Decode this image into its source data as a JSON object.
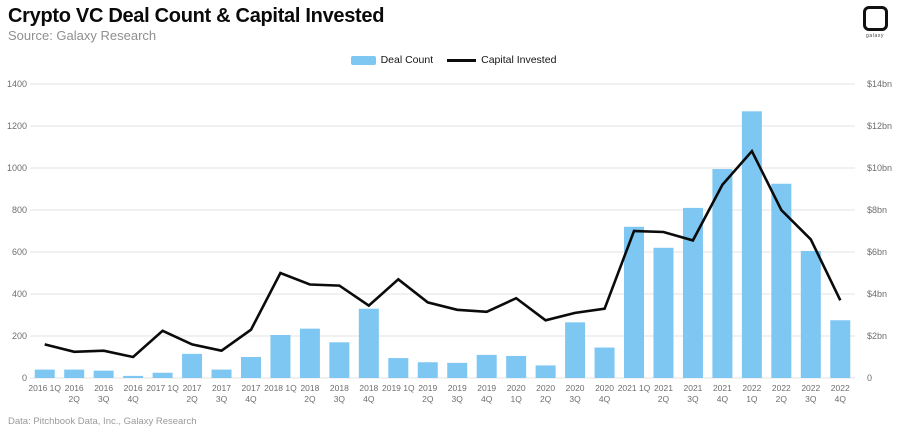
{
  "header": {
    "title": "Crypto VC Deal Count & Capital Invested",
    "subtitle": "Source: Galaxy Research",
    "logo_text": "galaxy"
  },
  "legend": {
    "deal_count_label": "Deal Count",
    "capital_invested_label": "Capital Invested"
  },
  "footer": {
    "text": "Data: Pitchbook Data, Inc., Galaxy Research"
  },
  "colors": {
    "bar": "#7ec7f3",
    "line": "#0b0b0b",
    "grid": "#e3e3e3",
    "axis_text": "#6e6e6e",
    "title_text": "#0a0a0a",
    "muted_text": "#9a9a9a"
  },
  "chart_data": {
    "type": "bar+line",
    "title": "Crypto VC Deal Count & Capital Invested",
    "categories": [
      "2016 1Q",
      "2016 2Q",
      "2016 3Q",
      "2016 4Q",
      "2017 1Q",
      "2017 2Q",
      "2017 3Q",
      "2017 4Q",
      "2018 1Q",
      "2018 2Q",
      "2018 3Q",
      "2018 4Q",
      "2019 1Q",
      "2019 2Q",
      "2019 3Q",
      "2019 4Q",
      "2020 1Q",
      "2020 2Q",
      "2020 3Q",
      "2020 4Q",
      "2021 1Q",
      "2021 2Q",
      "2021 3Q",
      "2021 4Q",
      "2022 1Q",
      "2022 2Q",
      "2022 3Q",
      "2022 4Q"
    ],
    "single_line_labels": [
      "2016 1Q",
      "2017 1Q",
      "2018 1Q",
      "2019 1Q",
      "2021 1Q"
    ],
    "series": [
      {
        "name": "Deal Count",
        "type": "bar",
        "axis": "left",
        "values": [
          40,
          40,
          35,
          10,
          25,
          115,
          40,
          100,
          205,
          235,
          170,
          330,
          95,
          75,
          72,
          110,
          105,
          60,
          265,
          145,
          720,
          620,
          810,
          995,
          1270,
          925,
          605,
          275
        ]
      },
      {
        "name": "Capital Invested",
        "type": "line",
        "axis": "right",
        "unit": "$bn",
        "values": [
          1.6,
          1.25,
          1.3,
          1.0,
          2.25,
          1.6,
          1.3,
          2.3,
          5.0,
          4.45,
          4.4,
          3.45,
          4.7,
          3.6,
          3.25,
          3.15,
          3.8,
          2.75,
          3.1,
          3.3,
          7.0,
          6.95,
          6.55,
          9.2,
          10.8,
          8.0,
          6.6,
          3.7
        ]
      }
    ],
    "left_axis": {
      "ticks": [
        0,
        200,
        400,
        600,
        800,
        1000,
        1200,
        1400
      ],
      "max": 1400
    },
    "right_axis": {
      "tick_labels": [
        "0",
        "$2bn",
        "$4bn",
        "$6bn",
        "$8bn",
        "$10bn",
        "$12bn",
        "$14bn"
      ],
      "tick_values_bn": [
        0,
        2,
        4,
        6,
        8,
        10,
        12,
        14
      ],
      "max_bn": 14
    },
    "grid": "horizontal",
    "legend_position": "top-center"
  }
}
